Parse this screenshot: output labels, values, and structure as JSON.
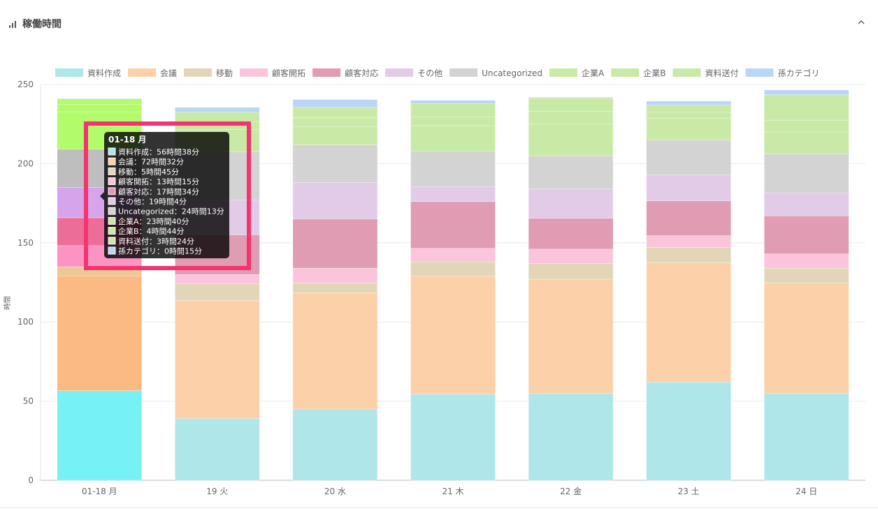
{
  "panel": {
    "title": "稼働時間",
    "title_icon": "bar-chart-icon",
    "collapse_icon": "chevron-up-icon"
  },
  "chart_data": {
    "type": "bar",
    "stacked": true,
    "ylabel": "時間",
    "ylim": [
      0,
      250
    ],
    "yticks": [
      0,
      50,
      100,
      150,
      200,
      250
    ],
    "grid": true,
    "legend_position": "top",
    "categories": [
      "01-18 月",
      "19 火",
      "20 水",
      "21 木",
      "22 金",
      "23 土",
      "24 日"
    ],
    "series": [
      {
        "name": "資料作成",
        "color": "#aee6e9",
        "values": [
          56.6,
          39,
          45,
          54.5,
          55,
          62,
          55
        ]
      },
      {
        "name": "会議",
        "color": "#fcd0a8",
        "values": [
          72.5,
          74.5,
          73.5,
          74.5,
          72,
          75.5,
          69.5
        ]
      },
      {
        "name": "移動",
        "color": "#e3d6b8",
        "values": [
          5.8,
          10.5,
          6,
          9,
          10,
          9.5,
          9.5
        ]
      },
      {
        "name": "顧客開拓",
        "color": "#fac5da",
        "values": [
          13.3,
          6,
          9.5,
          8.5,
          9,
          7.5,
          9
        ]
      },
      {
        "name": "顧客対応",
        "color": "#e09cb2",
        "values": [
          17.6,
          25,
          31,
          29.5,
          19.5,
          22,
          24
        ]
      },
      {
        "name": "その他",
        "color": "#e2cbe7",
        "values": [
          19.1,
          22,
          23,
          9.5,
          18.5,
          16.5,
          14.5
        ]
      },
      {
        "name": "Uncategorized",
        "color": "#d3d3d3",
        "values": [
          24.2,
          30.5,
          24,
          22.5,
          21,
          22,
          24.5
        ]
      },
      {
        "name": "企業A",
        "color": "#c8eaa6",
        "values": [
          23.7,
          14,
          11.5,
          16,
          20,
          13.5,
          14
        ]
      },
      {
        "name": "企業B",
        "color": "#c8eaa6",
        "values": [
          4.7,
          5,
          5.5,
          5.5,
          8,
          4,
          7.5
        ]
      },
      {
        "name": "資料送付",
        "color": "#c8eaa6",
        "values": [
          3.4,
          6,
          6.5,
          8.5,
          8.5,
          4.5,
          16
        ]
      },
      {
        "name": "孫カテゴリ",
        "color": "#b9d7f4",
        "values": [
          0.25,
          3,
          5,
          2,
          0.5,
          2.5,
          3
        ]
      }
    ],
    "highlight_colors": [
      "#76f1f4",
      "#fbba83",
      "#ebc993",
      "#fb94c2",
      "#ec6e98",
      "#d6a4ea",
      "#bebebe",
      "#b2fb6b",
      "#b2fb6b",
      "#b2fb6b",
      "#9bc9f7"
    ],
    "tooltip": {
      "title": "01-18 月",
      "lines": [
        "資料作成：56時間38分",
        "会議：72時間32分",
        "移動：5時間45分",
        "顧客開拓：13時間15分",
        "顧客対応：17時間34分",
        "その他：19時間4分",
        "Uncategorized：24時間13分",
        "企業A：23時間40分",
        "企業B：4時間44分",
        "資料送付：3時間24分",
        "孫カテゴリ：0時間15分"
      ],
      "annotation_color": "#f5336f"
    }
  }
}
